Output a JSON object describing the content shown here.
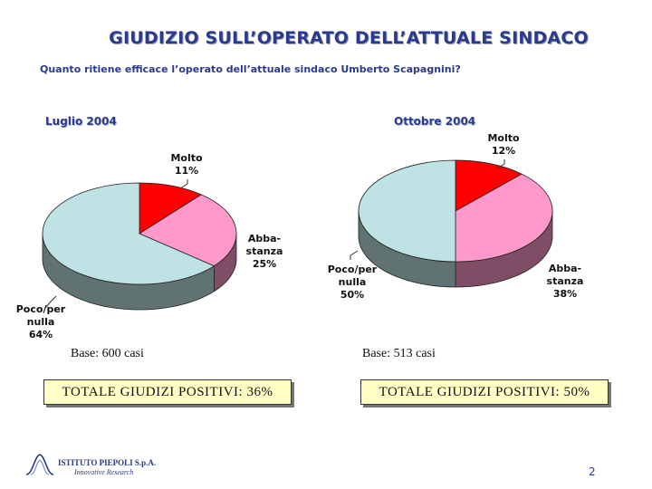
{
  "title": "GIUDIZIO SULL’OPERATO DELL’ATTUALE SINDACO",
  "subtitle": "Quanto ritiene efficace l’operato dell’attuale sindaco Umberto Scapagnini?",
  "colors": {
    "molto": "#ff0000",
    "abbastanza": "#ff99cc",
    "poco": "#bfe3e4"
  },
  "chart_data": [
    {
      "type": "pie",
      "title": "Luglio 2004",
      "categories": [
        "Molto",
        "Abba-stanza",
        "Poco/per nulla"
      ],
      "values": [
        11,
        25,
        64
      ],
      "base": "Base: 600 casi",
      "total": "TOTALE GIUDIZI POSITIVI: 36%"
    },
    {
      "type": "pie",
      "title": "Ottobre 2004",
      "categories": [
        "Molto",
        "Abba-stanza",
        "Poco/per nulla"
      ],
      "values": [
        12,
        38,
        50
      ],
      "base": "Base: 513 casi",
      "total": "TOTALE GIUDIZI POSITIVI: 50%"
    }
  ],
  "labels": {
    "l1_molto": "Molto",
    "l1_molto_pct": "11%",
    "l1_abba_1": "Abba-",
    "l1_abba_2": "stanza",
    "l1_abba_pct": "25%",
    "l1_poco_1": "Poco/per",
    "l1_poco_2": "nulla",
    "l1_poco_pct": "64%",
    "l2_molto": "Molto",
    "l2_molto_pct": "12%",
    "l2_abba_1": "Abba-",
    "l2_abba_2": "stanza",
    "l2_abba_pct": "38%",
    "l2_poco_1": "Poco/per",
    "l2_poco_2": "nulla",
    "l2_poco_pct": "50%"
  },
  "footer": {
    "logo_name": "ISTITUTO PIEPOLI S.p.A.",
    "logo_sub": "Innovative Research",
    "page_number": "2"
  }
}
